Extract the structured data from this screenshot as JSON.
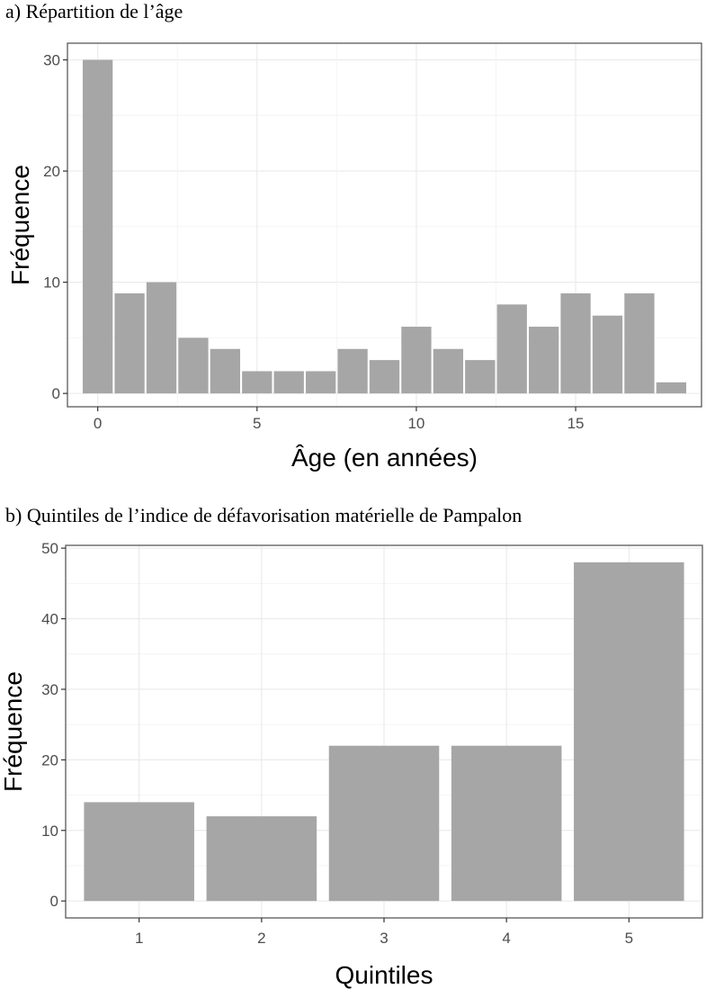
{
  "figure": {
    "caption_a": "a)   Répartition de l’âge",
    "caption_b": "b)   Quintiles de l’indice de défavorisation matérielle de Pampalon"
  },
  "colors": {
    "bar": "#a6a6a6",
    "grid_major": "#ebebeb",
    "grid_minor": "#f4f4f4",
    "panel_border": "#595959",
    "tick_text": "#4d4d4d"
  },
  "chart_data": [
    {
      "id": "age",
      "type": "bar",
      "title": "",
      "xlabel": "Âge (en années)",
      "ylabel": "Fréquence",
      "x": [
        0,
        1,
        2,
        3,
        4,
        5,
        6,
        7,
        8,
        9,
        10,
        11,
        12,
        13,
        14,
        15,
        16,
        17,
        18
      ],
      "values": [
        30,
        9,
        10,
        5,
        4,
        2,
        2,
        2,
        4,
        3,
        6,
        4,
        3,
        8,
        6,
        9,
        7,
        9,
        1
      ],
      "xlim": [
        -0.95,
        18.95
      ],
      "ylim": [
        -1.2,
        31.5
      ],
      "xticks": [
        0,
        5,
        10,
        15
      ],
      "xtick_labels": [
        "0",
        "5",
        "10",
        "15"
      ],
      "yticks": [
        0,
        10,
        20,
        30
      ],
      "ytick_labels": [
        "0",
        "10",
        "20",
        "30"
      ],
      "grid": true,
      "legend": "none"
    },
    {
      "id": "quintiles",
      "type": "bar",
      "title": "",
      "xlabel": "Quintiles",
      "ylabel": "Fréquence",
      "categories": [
        "1",
        "2",
        "3",
        "4",
        "5"
      ],
      "values": [
        14,
        12,
        22,
        22,
        48
      ],
      "xlim": [
        0.4,
        5.6
      ],
      "ylim": [
        -2.4,
        50.4
      ],
      "yticks": [
        0,
        10,
        20,
        30,
        40,
        50
      ],
      "ytick_labels": [
        "0",
        "10",
        "20",
        "30",
        "40",
        "50"
      ],
      "grid": true,
      "legend": "none"
    }
  ]
}
